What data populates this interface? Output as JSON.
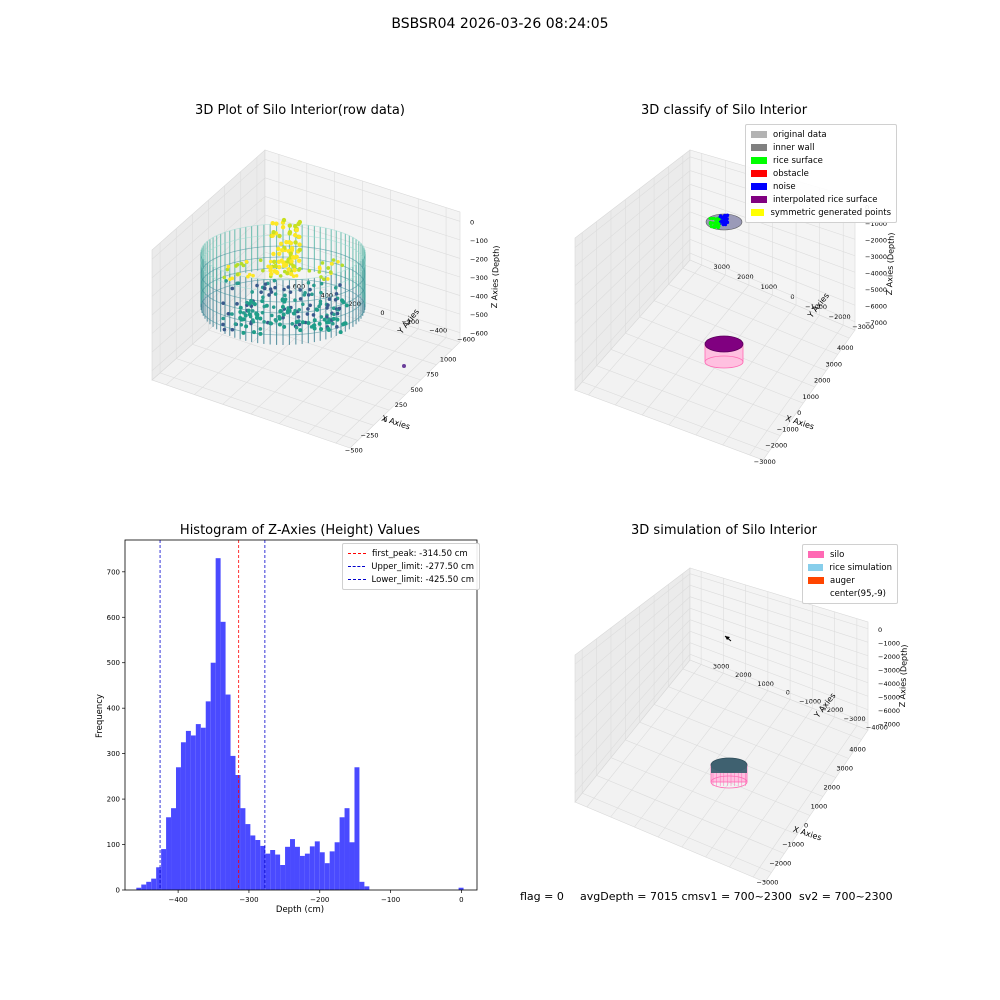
{
  "suptitle": "BSBSR04 2026-03-26 08:24:05",
  "status": {
    "flag": "flag = 0",
    "avg": "avgDepth = 7015 cmsv1 = 700~2300",
    "sv2": "sv2 = 700~2300"
  },
  "chart_data": [
    {
      "type": "scatter3d",
      "title": "3D Plot of Silo Interior(row data)",
      "xlabel": "X Axies",
      "ylabel": "Y Axies",
      "zlabel": "Z Axies (Depth)",
      "x_ticks": [
        "−500",
        "−250",
        "0",
        "250",
        "500",
        "750",
        "1000"
      ],
      "y_ticks": [
        "−600",
        "−400",
        "−200",
        "0",
        "200",
        "400",
        "600"
      ],
      "z_ticks": [
        "−600",
        "−500",
        "−400",
        "−300",
        "−200",
        "−100",
        "0"
      ],
      "colors": {
        "low": "#2a9d8f",
        "mid": "#3a5a8c",
        "high": "#fde725"
      }
    },
    {
      "type": "scatter3d",
      "title": "3D classify of Silo Interior",
      "xlabel": "X Axies",
      "ylabel": "Y Axies",
      "zlabel": "Z Axies (Depth)",
      "x_ticks": [
        "−3000",
        "−2000",
        "−1000",
        "0",
        "1000",
        "2000",
        "3000",
        "4000"
      ],
      "y_ticks": [
        "−3000",
        "−2000",
        "−1000",
        "0",
        "1000",
        "2000",
        "3000"
      ],
      "z_ticks": [
        "−7000",
        "−6000",
        "−5000",
        "−4000",
        "−3000",
        "−2000",
        "−1000",
        "0"
      ],
      "legend": [
        {
          "label": "original data",
          "color": "#b3b3b3"
        },
        {
          "label": "inner wall",
          "color": "#808080"
        },
        {
          "label": "rice surface",
          "color": "#00ff00"
        },
        {
          "label": "obstacle",
          "color": "#ff0000"
        },
        {
          "label": "noise",
          "color": "#0000ff"
        },
        {
          "label": "interpolated rice surface",
          "color": "#800080"
        },
        {
          "label": "symmetric generated points",
          "color": "#ffff00"
        }
      ]
    },
    {
      "type": "bar",
      "title": "Histogram of Z-Axies (Height) Values",
      "xlabel": "Depth (cm)",
      "ylabel": "Frequency",
      "xlim": [
        -475,
        22
      ],
      "ylim": [
        0,
        770
      ],
      "bin_width": 7,
      "x_ticks": [
        -400,
        -300,
        -200,
        -100,
        0
      ],
      "x_tick_labels": [
        "−400",
        "−300",
        "−200",
        "−100",
        "0"
      ],
      "y_ticks": [
        0,
        100,
        200,
        300,
        400,
        500,
        600,
        700
      ],
      "bin_starts": [
        -459,
        -452,
        -445,
        -438,
        -431,
        -424,
        -417,
        -410,
        -403,
        -396,
        -389,
        -382,
        -375,
        -368,
        -361,
        -354,
        -347,
        -340,
        -333,
        -326,
        -319,
        -312,
        -305,
        -298,
        -291,
        -284,
        -277,
        -270,
        -263,
        -256,
        -249,
        -242,
        -235,
        -228,
        -221,
        -214,
        -207,
        -200,
        -193,
        -186,
        -179,
        -172,
        -165,
        -158,
        -151,
        -144,
        -137,
        -130,
        -123,
        -116,
        -109,
        -102,
        -95,
        -88,
        -81,
        -74,
        -67,
        -60,
        -53,
        -46,
        -39,
        -32,
        -25,
        -18,
        -11,
        -4
      ],
      "values": [
        5,
        12,
        18,
        25,
        50,
        90,
        160,
        180,
        270,
        325,
        350,
        340,
        365,
        357,
        415,
        500,
        730,
        590,
        430,
        295,
        253,
        180,
        145,
        120,
        110,
        97,
        80,
        88,
        78,
        55,
        95,
        112,
        95,
        75,
        80,
        96,
        107,
        83,
        59,
        85,
        105,
        160,
        180,
        105,
        270,
        18,
        8,
        0,
        0,
        0,
        0,
        0,
        0,
        0,
        0,
        0,
        0,
        0,
        0,
        0,
        0,
        0,
        0,
        0,
        0,
        5
      ],
      "bar_color": "#4a4aff",
      "vlines": [
        {
          "x": -314.5,
          "color": "#ff0000",
          "label": "first_peak: -314.50 cm"
        },
        {
          "x": -277.5,
          "color": "#0000cc",
          "label": "Upper_limit: -277.50 cm"
        },
        {
          "x": -425.5,
          "color": "#0000cc",
          "label": "Lower_limit: -425.50 cm"
        }
      ],
      "legend_position": "upper right"
    },
    {
      "type": "scatter3d",
      "title": "3D simulation of Silo Interior",
      "xlabel": "X Axies",
      "ylabel": "Y Axies",
      "zlabel": "Z Axies (Depth)",
      "x_ticks": [
        "−3000",
        "−2000",
        "−1000",
        "0",
        "1000",
        "2000",
        "3000",
        "4000"
      ],
      "y_ticks": [
        "−4000",
        "−3000",
        "−2000",
        "−1000",
        "0",
        "1000",
        "2000",
        "3000"
      ],
      "z_ticks": [
        "−7000",
        "−6000",
        "−5000",
        "−4000",
        "−3000",
        "−2000",
        "−1000",
        "0"
      ],
      "legend": [
        {
          "label": "silo",
          "color": "#ff69b4"
        },
        {
          "label": "rice simulation",
          "color": "#87ceeb"
        },
        {
          "label": "auger",
          "color": "#ff4500"
        },
        {
          "label": "center(95,-9)",
          "color": ""
        }
      ]
    }
  ]
}
